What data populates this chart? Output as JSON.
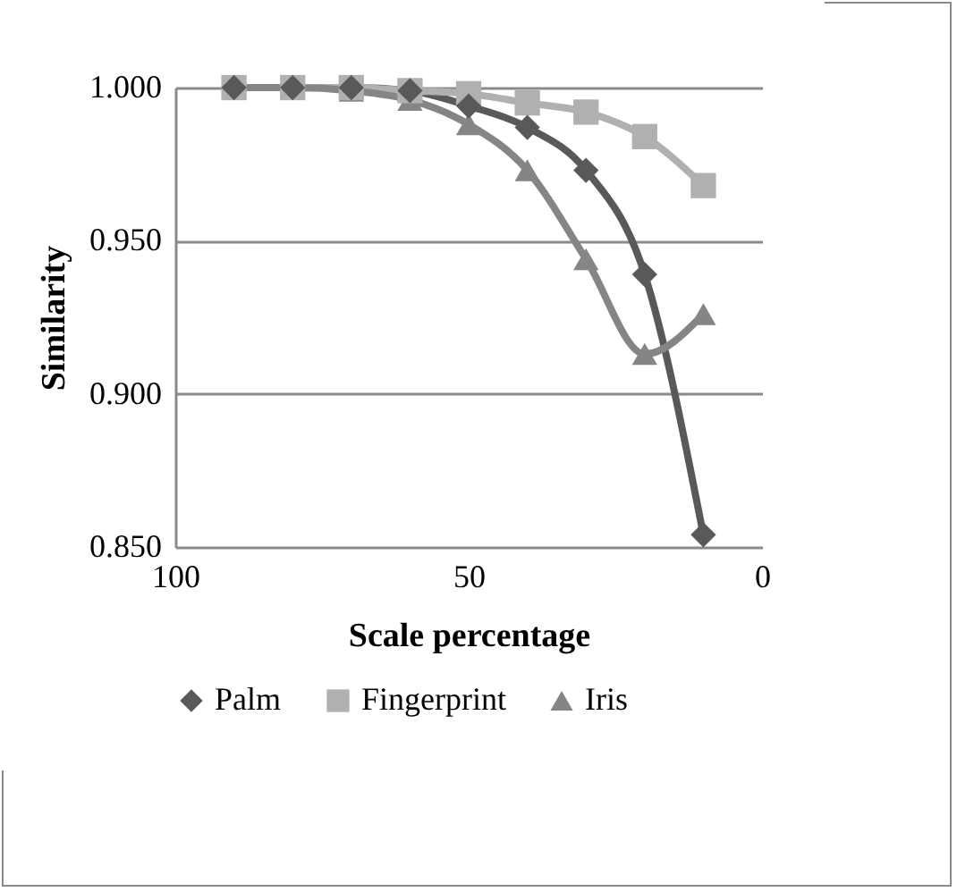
{
  "chart_data": {
    "type": "line",
    "xlabel": "Scale percentage",
    "ylabel": "Similarity",
    "x": [
      90,
      80,
      70,
      60,
      50,
      40,
      30,
      20,
      10
    ],
    "series": [
      {
        "name": "Palm",
        "color": "#595959",
        "marker": "diamond",
        "values": [
          1.0,
          1.0,
          1.0,
          0.999,
          0.994,
          0.987,
          0.973,
          0.939,
          0.854
        ]
      },
      {
        "name": "Fingerprint",
        "color": "#b0b0b0",
        "marker": "square",
        "values": [
          1.0,
          1.0,
          1.0,
          0.999,
          0.998,
          0.995,
          0.992,
          0.984,
          0.968
        ]
      },
      {
        "name": "Iris",
        "color": "#858585",
        "marker": "triangle",
        "values": [
          1.0,
          1.0,
          0.999,
          0.996,
          0.988,
          0.973,
          0.944,
          0.913,
          0.926
        ]
      }
    ],
    "xlim": [
      100,
      0
    ],
    "xticks": [
      100,
      50,
      0
    ],
    "ylim": [
      0.85,
      1.0
    ],
    "yticks": [
      {
        "value": 0.85,
        "label": "0.850"
      },
      {
        "value": 0.9,
        "label": "0.900"
      },
      {
        "value": 0.95,
        "label": "0.950"
      },
      {
        "value": 1.0,
        "label": "1.000"
      }
    ],
    "grid": "y",
    "legend": "bottom",
    "line_style": "solid"
  }
}
